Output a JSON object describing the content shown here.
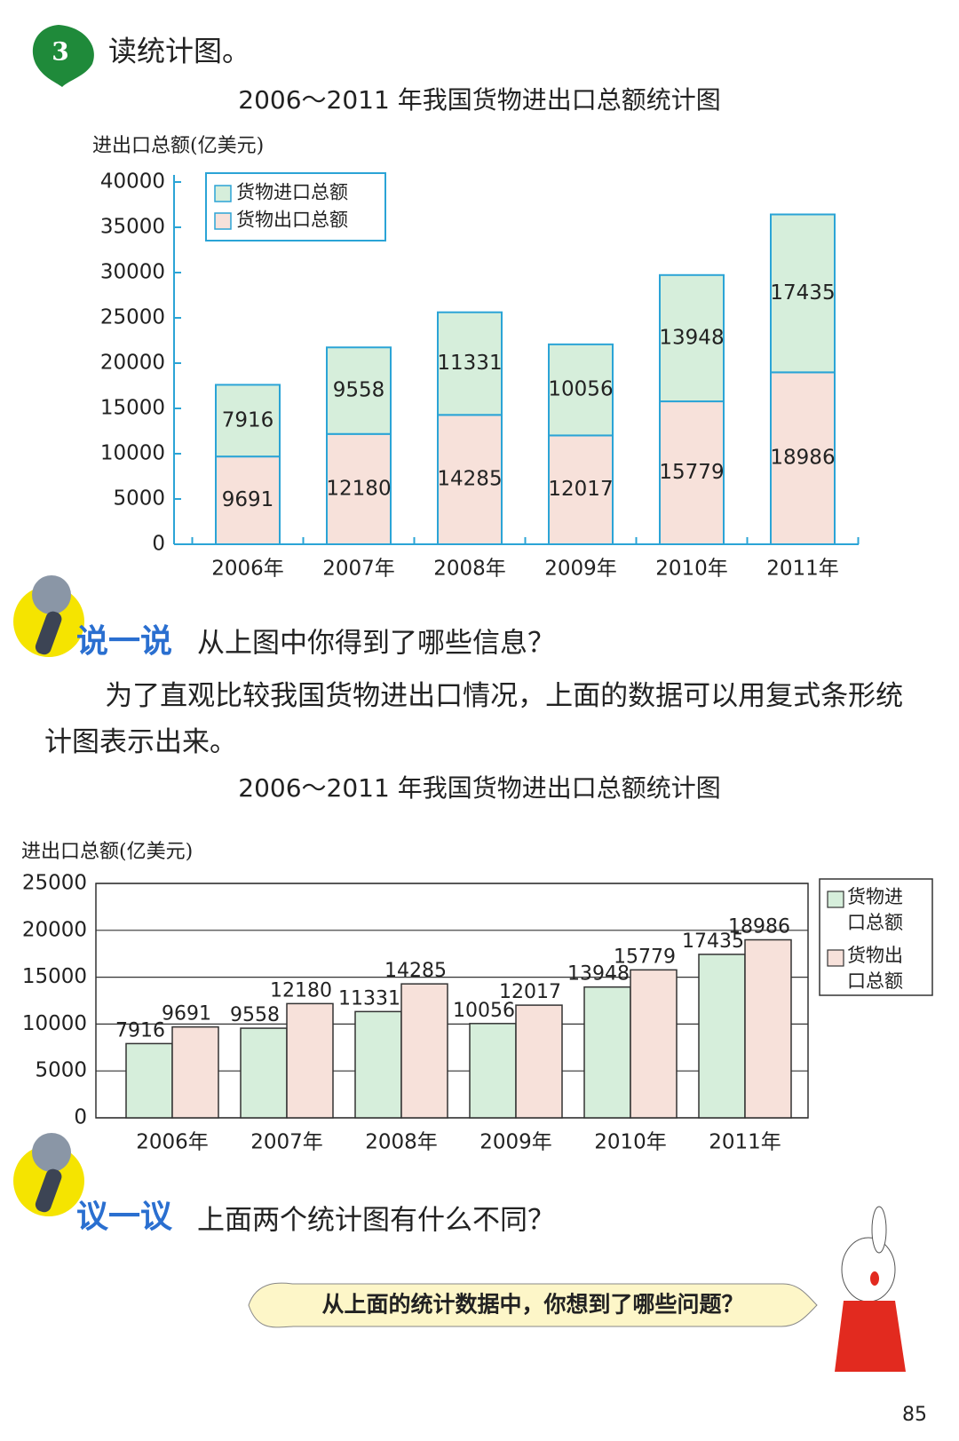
{
  "header": {
    "number": "3",
    "title": "读统计图。"
  },
  "chart_data": [
    {
      "type": "stacked-bar",
      "title": "2006～2011 年我国货物进出口总额统计图",
      "y_label": "进出口总额(亿美元)",
      "categories": [
        "2006年",
        "2007年",
        "2008年",
        "2009年",
        "2010年",
        "2011年"
      ],
      "series": [
        {
          "name": "货物进口总额",
          "color": "#d6eedb",
          "values": [
            7916,
            9558,
            11331,
            10056,
            13948,
            17435
          ]
        },
        {
          "name": "货物出口总额",
          "color": "#f7e1da",
          "values": [
            9691,
            12180,
            14285,
            12017,
            15779,
            18986
          ]
        }
      ],
      "ylim": [
        0,
        40000
      ],
      "yticks": [
        0,
        5000,
        10000,
        15000,
        20000,
        25000,
        30000,
        35000,
        40000
      ],
      "grid": false,
      "legend": "top-left"
    },
    {
      "type": "grouped-bar",
      "title": "2006～2011 年我国货物进出口总额统计图",
      "y_label": "进出口总额(亿美元)",
      "categories": [
        "2006年",
        "2007年",
        "2008年",
        "2009年",
        "2010年",
        "2011年"
      ],
      "series": [
        {
          "name": "货物进口总额",
          "color": "#d6eedb",
          "values": [
            7916,
            9558,
            11331,
            10056,
            13948,
            17435
          ]
        },
        {
          "name": "货物出口总额",
          "color": "#f7e1da",
          "values": [
            9691,
            12180,
            14285,
            12017,
            15779,
            18986
          ]
        }
      ],
      "ylim": [
        0,
        25000
      ],
      "yticks": [
        0,
        5000,
        10000,
        15000,
        20000,
        25000
      ],
      "grid": true,
      "legend": "right"
    }
  ],
  "sections": [
    {
      "label": "说一说",
      "text": "从上图中你得到了哪些信息？"
    },
    {
      "label": "议一议",
      "text": "上面两个统计图有什么不同？"
    }
  ],
  "paragraph": "为了直观比较我国货物进出口情况，上面的数据可以用复式条形统计图表示出来。",
  "bubble": "从上面的统计数据中，你想到了哪些问题？",
  "page_number": "85"
}
